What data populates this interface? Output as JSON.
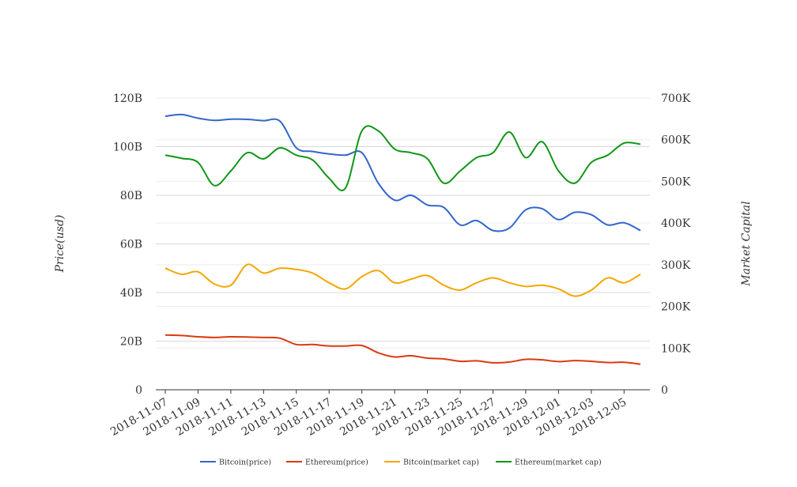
{
  "chart_data": {
    "type": "line",
    "x": [
      "2018-11-07",
      "2018-11-08",
      "2018-11-09",
      "2018-11-10",
      "2018-11-11",
      "2018-11-12",
      "2018-11-13",
      "2018-11-14",
      "2018-11-15",
      "2018-11-16",
      "2018-11-17",
      "2018-11-18",
      "2018-11-19",
      "2018-11-20",
      "2018-11-21",
      "2018-11-22",
      "2018-11-23",
      "2018-11-24",
      "2018-11-25",
      "2018-11-26",
      "2018-11-27",
      "2018-11-28",
      "2018-11-29",
      "2018-11-30",
      "2018-12-01",
      "2018-12-02",
      "2018-12-03",
      "2018-12-04",
      "2018-12-05",
      "2018-12-06"
    ],
    "x_tick_labels": [
      "2018-11-07",
      "2018-11-09",
      "2018-11-11",
      "2018-11-13",
      "2018-11-15",
      "2018-11-17",
      "2018-11-19",
      "2018-11-21",
      "2018-11-23",
      "2018-11-25",
      "2018-11-27",
      "2018-11-29",
      "2018-12-01",
      "2018-12-03",
      "2018-12-05"
    ],
    "ylabel_left": "Price(usd)",
    "ylabel_right": "Market Capital",
    "ylim_left": [
      0,
      120000000000
    ],
    "ylim_right": [
      0,
      700000
    ],
    "left_ticks": [
      "0",
      "20B",
      "40B",
      "60B",
      "80B",
      "100B",
      "120B"
    ],
    "right_ticks": [
      "0",
      "100K",
      "200K",
      "300K",
      "400K",
      "500K",
      "600K",
      "700K"
    ],
    "grid": true,
    "legend_position": "bottom",
    "series": [
      {
        "name": "Bitcoin(price)",
        "axis": "left",
        "color": "#3366cc",
        "values": [
          112.5,
          113.2,
          111.7,
          110.8,
          111.3,
          111.2,
          110.7,
          110.5,
          99.5,
          98.0,
          97.0,
          96.5,
          97.5,
          85.0,
          78.0,
          80.0,
          76.0,
          75.0,
          67.8,
          69.6,
          65.5,
          66.5,
          74.0,
          74.5,
          70.0,
          73.0,
          72.0,
          67.8,
          68.7,
          65.5
        ]
      },
      {
        "name": "Ethereum(price)",
        "axis": "left",
        "color": "#dc3912",
        "values": [
          22.5,
          22.3,
          21.8,
          21.5,
          21.8,
          21.7,
          21.5,
          21.2,
          18.6,
          18.6,
          18.0,
          18.0,
          18.2,
          15.2,
          13.5,
          14.0,
          13.0,
          12.7,
          11.7,
          11.9,
          11.1,
          11.4,
          12.5,
          12.3,
          11.6,
          12.0,
          11.7,
          11.2,
          11.3,
          10.5
        ]
      },
      {
        "name": "Bitcoin(market cap)",
        "axis": "left",
        "color": "#f4a600",
        "values": [
          50.0,
          47.5,
          48.5,
          43.5,
          43.0,
          51.5,
          48.0,
          50.0,
          49.5,
          48.0,
          44.0,
          41.5,
          46.5,
          49.0,
          44.0,
          45.5,
          47.0,
          43.0,
          41.0,
          44.0,
          46.0,
          44.0,
          42.5,
          43.0,
          41.5,
          38.5,
          41.0,
          46.0,
          44.0,
          47.5
        ]
      },
      {
        "name": "Ethereum(market cap)",
        "axis": "left",
        "color": "#109618",
        "values": [
          96.5,
          95.2,
          93.5,
          84.0,
          90.0,
          97.5,
          95.0,
          99.5,
          96.5,
          94.5,
          87.0,
          83.0,
          106.5,
          106.5,
          99.0,
          97.5,
          95.0,
          85.0,
          90.0,
          95.5,
          97.5,
          106.0,
          95.5,
          102.0,
          90.0,
          85.0,
          93.5,
          96.5,
          101.5,
          101.0
        ]
      }
    ]
  }
}
